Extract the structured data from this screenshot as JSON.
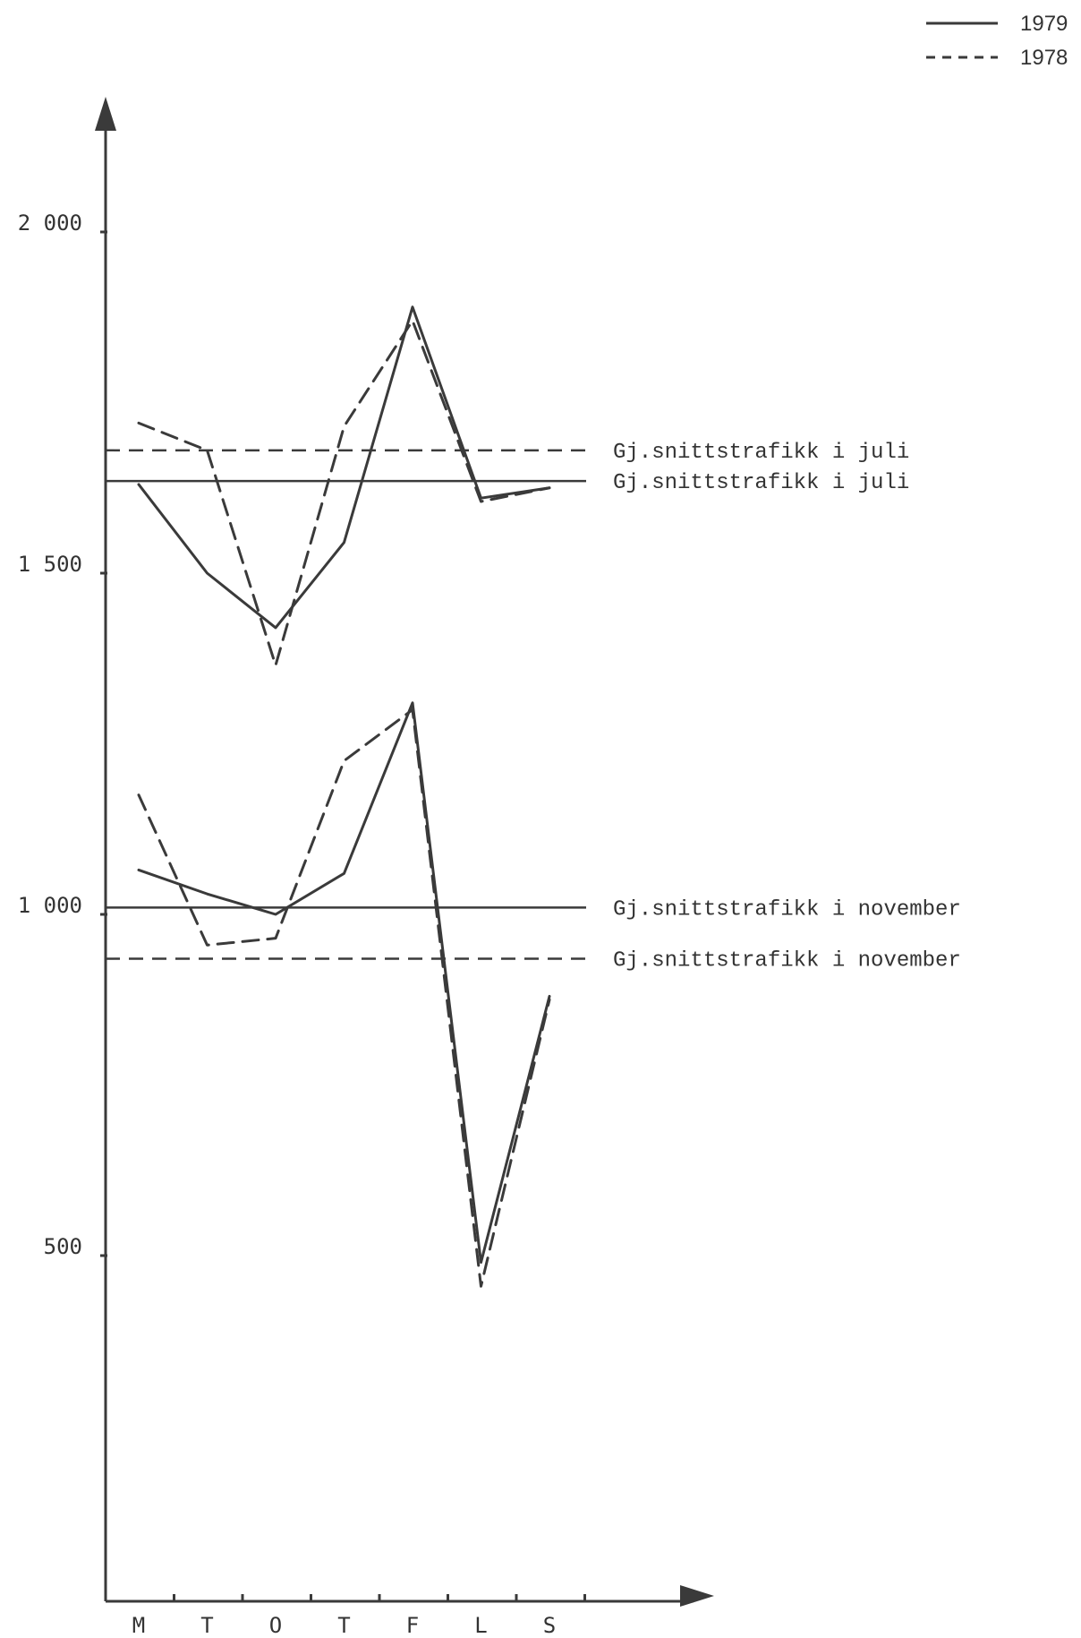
{
  "chart_data": {
    "type": "line",
    "title": "",
    "xlabel": "",
    "ylabel": "",
    "categories": [
      "M",
      "T",
      "O",
      "T",
      "F",
      "L",
      "S"
    ],
    "yticks": [
      {
        "value": 2000,
        "label": "2 000"
      },
      {
        "value": 1500,
        "label": "1 500"
      },
      {
        "value": 1000,
        "label": "1 000"
      },
      {
        "value": 500,
        "label": "500"
      }
    ],
    "ylim": [
      0,
      2200
    ],
    "legend": {
      "position": "top-right",
      "entries": [
        {
          "label": "1979",
          "style": "solid"
        },
        {
          "label": "1978",
          "style": "dashed"
        }
      ]
    },
    "series": [
      {
        "group": "juli",
        "legend": "1979",
        "style": "solid",
        "values": [
          1630,
          1500,
          1420,
          1545,
          1890,
          1610,
          1625
        ]
      },
      {
        "group": "juli",
        "legend": "1978",
        "style": "dashed",
        "values": [
          1720,
          1680,
          1365,
          1715,
          1870,
          1605,
          1625
        ]
      },
      {
        "group": "november",
        "legend": "1979",
        "style": "solid",
        "values": [
          1065,
          1030,
          1000,
          1060,
          1310,
          490,
          880
        ]
      },
      {
        "group": "november",
        "legend": "1978",
        "style": "dashed",
        "values": [
          1175,
          955,
          965,
          1225,
          1300,
          455,
          875
        ]
      }
    ],
    "reference_lines": [
      {
        "label": "Gj.snittstrafikk i juli",
        "value": 1680,
        "style": "dashed"
      },
      {
        "label": "Gj.snittstrafikk i juli",
        "value": 1635,
        "style": "solid"
      },
      {
        "label": "Gj.snittstrafikk i november",
        "value": 1010,
        "style": "solid"
      },
      {
        "label": "Gj.snittstrafikk i november",
        "value": 935,
        "style": "dashed"
      }
    ],
    "colors": {
      "ink": "#3a3a3a",
      "background": "#ffffff"
    }
  }
}
